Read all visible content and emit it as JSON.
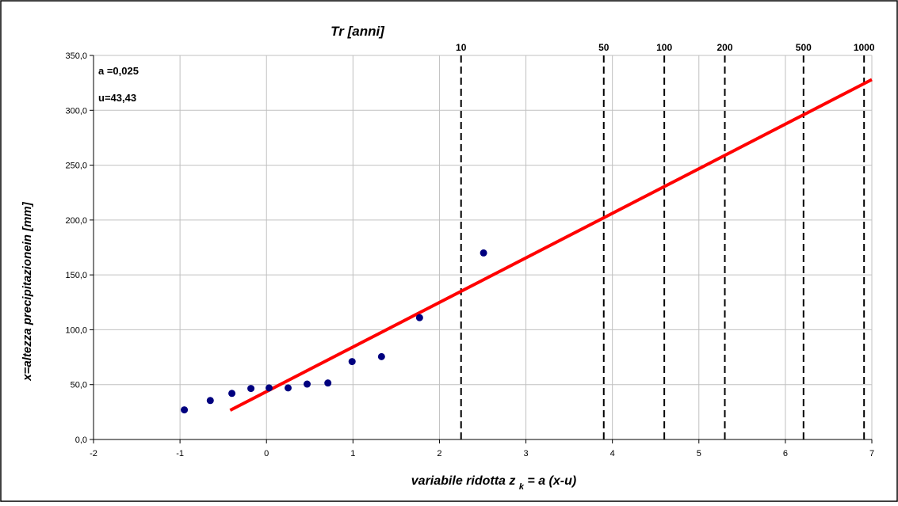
{
  "chart_data": {
    "type": "scatter",
    "title": "Tr [anni]",
    "xlabel_main": "variabile ridotta z",
    "xlabel_sub": "k",
    "xlabel_tail": " = a  (x-u)",
    "ylabel": "x=altezza precipitazionein [mm]",
    "xlim": [
      -2,
      7
    ],
    "ylim": [
      0,
      350
    ],
    "x_ticks": [
      "-2",
      "-1",
      "0",
      "1",
      "2",
      "3",
      "4",
      "5",
      "6",
      "7"
    ],
    "y_ticks": [
      "0,0",
      "50,0",
      "100,0",
      "150,0",
      "200,0",
      "250,0",
      "300,0",
      "350,0"
    ],
    "grid": true,
    "annotations": [
      "a =0,025",
      "u=43,43"
    ],
    "return_periods": [
      {
        "label": "10",
        "z": 2.25
      },
      {
        "label": "50",
        "z": 3.9
      },
      {
        "label": "100",
        "z": 4.6
      },
      {
        "label": "200",
        "z": 5.3
      },
      {
        "label": "500",
        "z": 6.21
      },
      {
        "label": "1000",
        "z": 6.91
      }
    ],
    "points": [
      {
        "x": -0.95,
        "y": 27.0
      },
      {
        "x": -0.65,
        "y": 35.5
      },
      {
        "x": -0.4,
        "y": 42.0
      },
      {
        "x": -0.18,
        "y": 46.5
      },
      {
        "x": 0.03,
        "y": 47.0
      },
      {
        "x": 0.25,
        "y": 47.0
      },
      {
        "x": 0.47,
        "y": 50.5
      },
      {
        "x": 0.71,
        "y": 51.5
      },
      {
        "x": 0.99,
        "y": 71.0
      },
      {
        "x": 1.33,
        "y": 75.5
      },
      {
        "x": 1.77,
        "y": 111.0
      },
      {
        "x": 2.51,
        "y": 170.0
      }
    ],
    "fit_line": {
      "x": [
        -0.42,
        7.0
      ],
      "y": [
        26.6,
        328.0
      ]
    },
    "colors": {
      "points": "#00007f",
      "fit": "#ff0000",
      "grid": "#c0c0c0",
      "dashed": "#000000"
    }
  }
}
